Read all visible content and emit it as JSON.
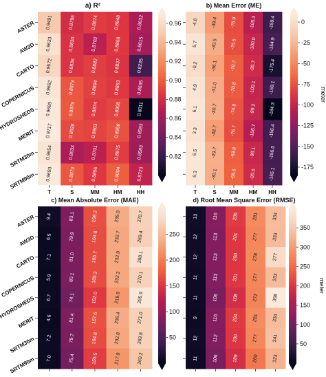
{
  "chart_data": [
    {
      "type": "heatmap",
      "title": "a)    R²",
      "x_categories": [
        "T",
        "S",
        "MM",
        "HM",
        "HH"
      ],
      "y_categories": [
        "ASTER",
        "AW3D",
        "CARTO",
        "COPERNICUS",
        "HYDROSHEDS",
        "MERIT",
        "SRTM30m",
        "SRTM90m"
      ],
      "values": [
        [
          0.9491,
          0.8795,
          0.8874,
          0.8848,
          0.8632
        ],
        [
          0.9633,
          0.883,
          0.8702,
          0.8858,
          0.8615
        ],
        [
          0.9572,
          0.8836,
          0.8882,
          0.8837,
          0.8235
        ],
        [
          0.9662,
          0.8973,
          0.8894,
          0.8863,
          0.8635
        ],
        [
          0.9689,
          0.8979,
          0.8874,
          0.8908,
          0.8011
        ],
        [
          0.9717,
          0.8928,
          0.8903,
          0.8958,
          0.8593
        ],
        [
          0.9654,
          0.8633,
          0.8701,
          0.8875,
          0.8583
        ],
        [
          0.9693,
          0.8973,
          0.8856,
          0.9004,
          0.8723
        ]
      ],
      "vmin": 0.8,
      "vmax": 0.97,
      "colorbar_ticks": [
        "0.96",
        "0.94",
        "0.92",
        "0.90",
        "0.88",
        "0.86",
        "0.84",
        "0.82"
      ],
      "colorbar_tick_values": [
        0.96,
        0.94,
        0.92,
        0.9,
        0.88,
        0.86,
        0.84,
        0.82
      ],
      "unit_label": "",
      "colorbar_side": "right"
    },
    {
      "type": "heatmap",
      "title": "b) Mean Error (ME)",
      "x_categories": [
        "T",
        "S",
        "MM",
        "HM",
        "HH"
      ],
      "y_categories": [
        "",
        "",
        "",
        "",
        "",
        "",
        "",
        ""
      ],
      "values": [
        [
          -4.8,
          -39.4,
          -76.9,
          -105.3,
          -159.4
        ],
        [
          5.7,
          -30.5,
          -76.5,
          -100.0,
          -154.9
        ],
        [
          -0.2,
          -36.1,
          -70.7,
          -95.7,
          -175.4
        ],
        [
          4.9,
          -31.0,
          -70.8,
          -100.1,
          -159.1
        ],
        [
          6.1,
          -30.7,
          -74.8,
          -99.2,
          -184.3
        ],
        [
          3.3,
          -38.7,
          -76.7,
          -106.7,
          -156.4
        ],
        [
          6.5,
          -29.7,
          -69.8,
          -98.1,
          -156.0
        ],
        [
          6.3,
          -30.1,
          -68.6,
          -95.6,
          -155.1
        ]
      ],
      "vmin": -185,
      "vmax": 10,
      "colorbar_ticks": [
        "0",
        "-25",
        "-50",
        "-75",
        "-100",
        "-125",
        "-150",
        "-175"
      ],
      "colorbar_tick_values": [
        0,
        -25,
        -50,
        -75,
        -100,
        -125,
        -150,
        -175
      ],
      "unit_label": "meter",
      "colorbar_side": "right"
    },
    {
      "type": "heatmap",
      "title": "c) Mean Absolute Error (MAE)",
      "x_categories": [
        "T",
        "S",
        "MM",
        "HM",
        "HH"
      ],
      "y_categories": [
        "ASTER",
        "AW3D",
        "CARTO",
        "COPERNICUS",
        "HYDROSHEDS",
        "MERIT",
        "SRTM30m",
        "SRTM90m"
      ],
      "values": [
        [
          9.4,
          83.1,
          168.2,
          235.9,
          270.7
        ],
        [
          6.5,
          79.9,
          164.8,
          232.7,
          269.4
        ],
        [
          7.1,
          81.0,
          165.7,
          232.9,
          288.1
        ],
        [
          5.9,
          80.1,
          165.3,
          232.3,
          270.1
        ],
        [
          6.7,
          74.1,
          152.0,
          219.9,
          295.9
        ],
        [
          4.6,
          81.4,
          167.6,
          236.4,
          271.0
        ],
        [
          7.2,
          79.7,
          164.8,
          232.8,
          269.8
        ],
        [
          7.0,
          75.4,
          155.5,
          217.9,
          260.2
        ]
      ],
      "vmin": 0,
      "vmax": 300,
      "colorbar_ticks": [
        "250",
        "200",
        "150",
        "100",
        "50"
      ],
      "colorbar_tick_values": [
        250,
        200,
        150,
        100,
        50
      ],
      "unit_label": "meter",
      "colorbar_side": "right"
    },
    {
      "type": "heatmap",
      "title": "d) Root Mean Square Error (RMSE)",
      "x_categories": [
        "T",
        "S",
        "MM",
        "HM",
        "HH"
      ],
      "y_categories": [
        "",
        "",
        "",
        "",
        "",
        "",
        "",
        ""
      ],
      "values": [
        [
          13,
          116,
          205,
          281,
          334
        ],
        [
          12,
          113,
          201,
          277,
          333
        ],
        [
          12,
          113,
          200,
          278,
          377
        ],
        [
          11,
          113,
          201,
          277,
          333
        ],
        [
          11,
          106,
          188,
          272,
          398
        ],
        [
          9,
          116,
          204,
          281,
          334
        ],
        [
          12,
          112,
          200,
          277,
          341
        ],
        [
          11,
          106,
          189,
          260,
          323
        ]
      ],
      "vmin": 0,
      "vmax": 400,
      "colorbar_ticks": [
        "350",
        "300",
        "250",
        "200",
        "150",
        "100",
        "50"
      ],
      "colorbar_tick_values": [
        350,
        300,
        250,
        200,
        150,
        100,
        50
      ],
      "unit_label": "meter",
      "colorbar_side": "right"
    }
  ],
  "colormap": "rocket",
  "colormap_stops": [
    "#03051a",
    "#2e1c45",
    "#5c1f5d",
    "#8a1e5f",
    "#b61d52",
    "#dd3542",
    "#ef6340",
    "#f48b5e",
    "#f5b08b",
    "#f7d1b8",
    "#faebdd"
  ]
}
